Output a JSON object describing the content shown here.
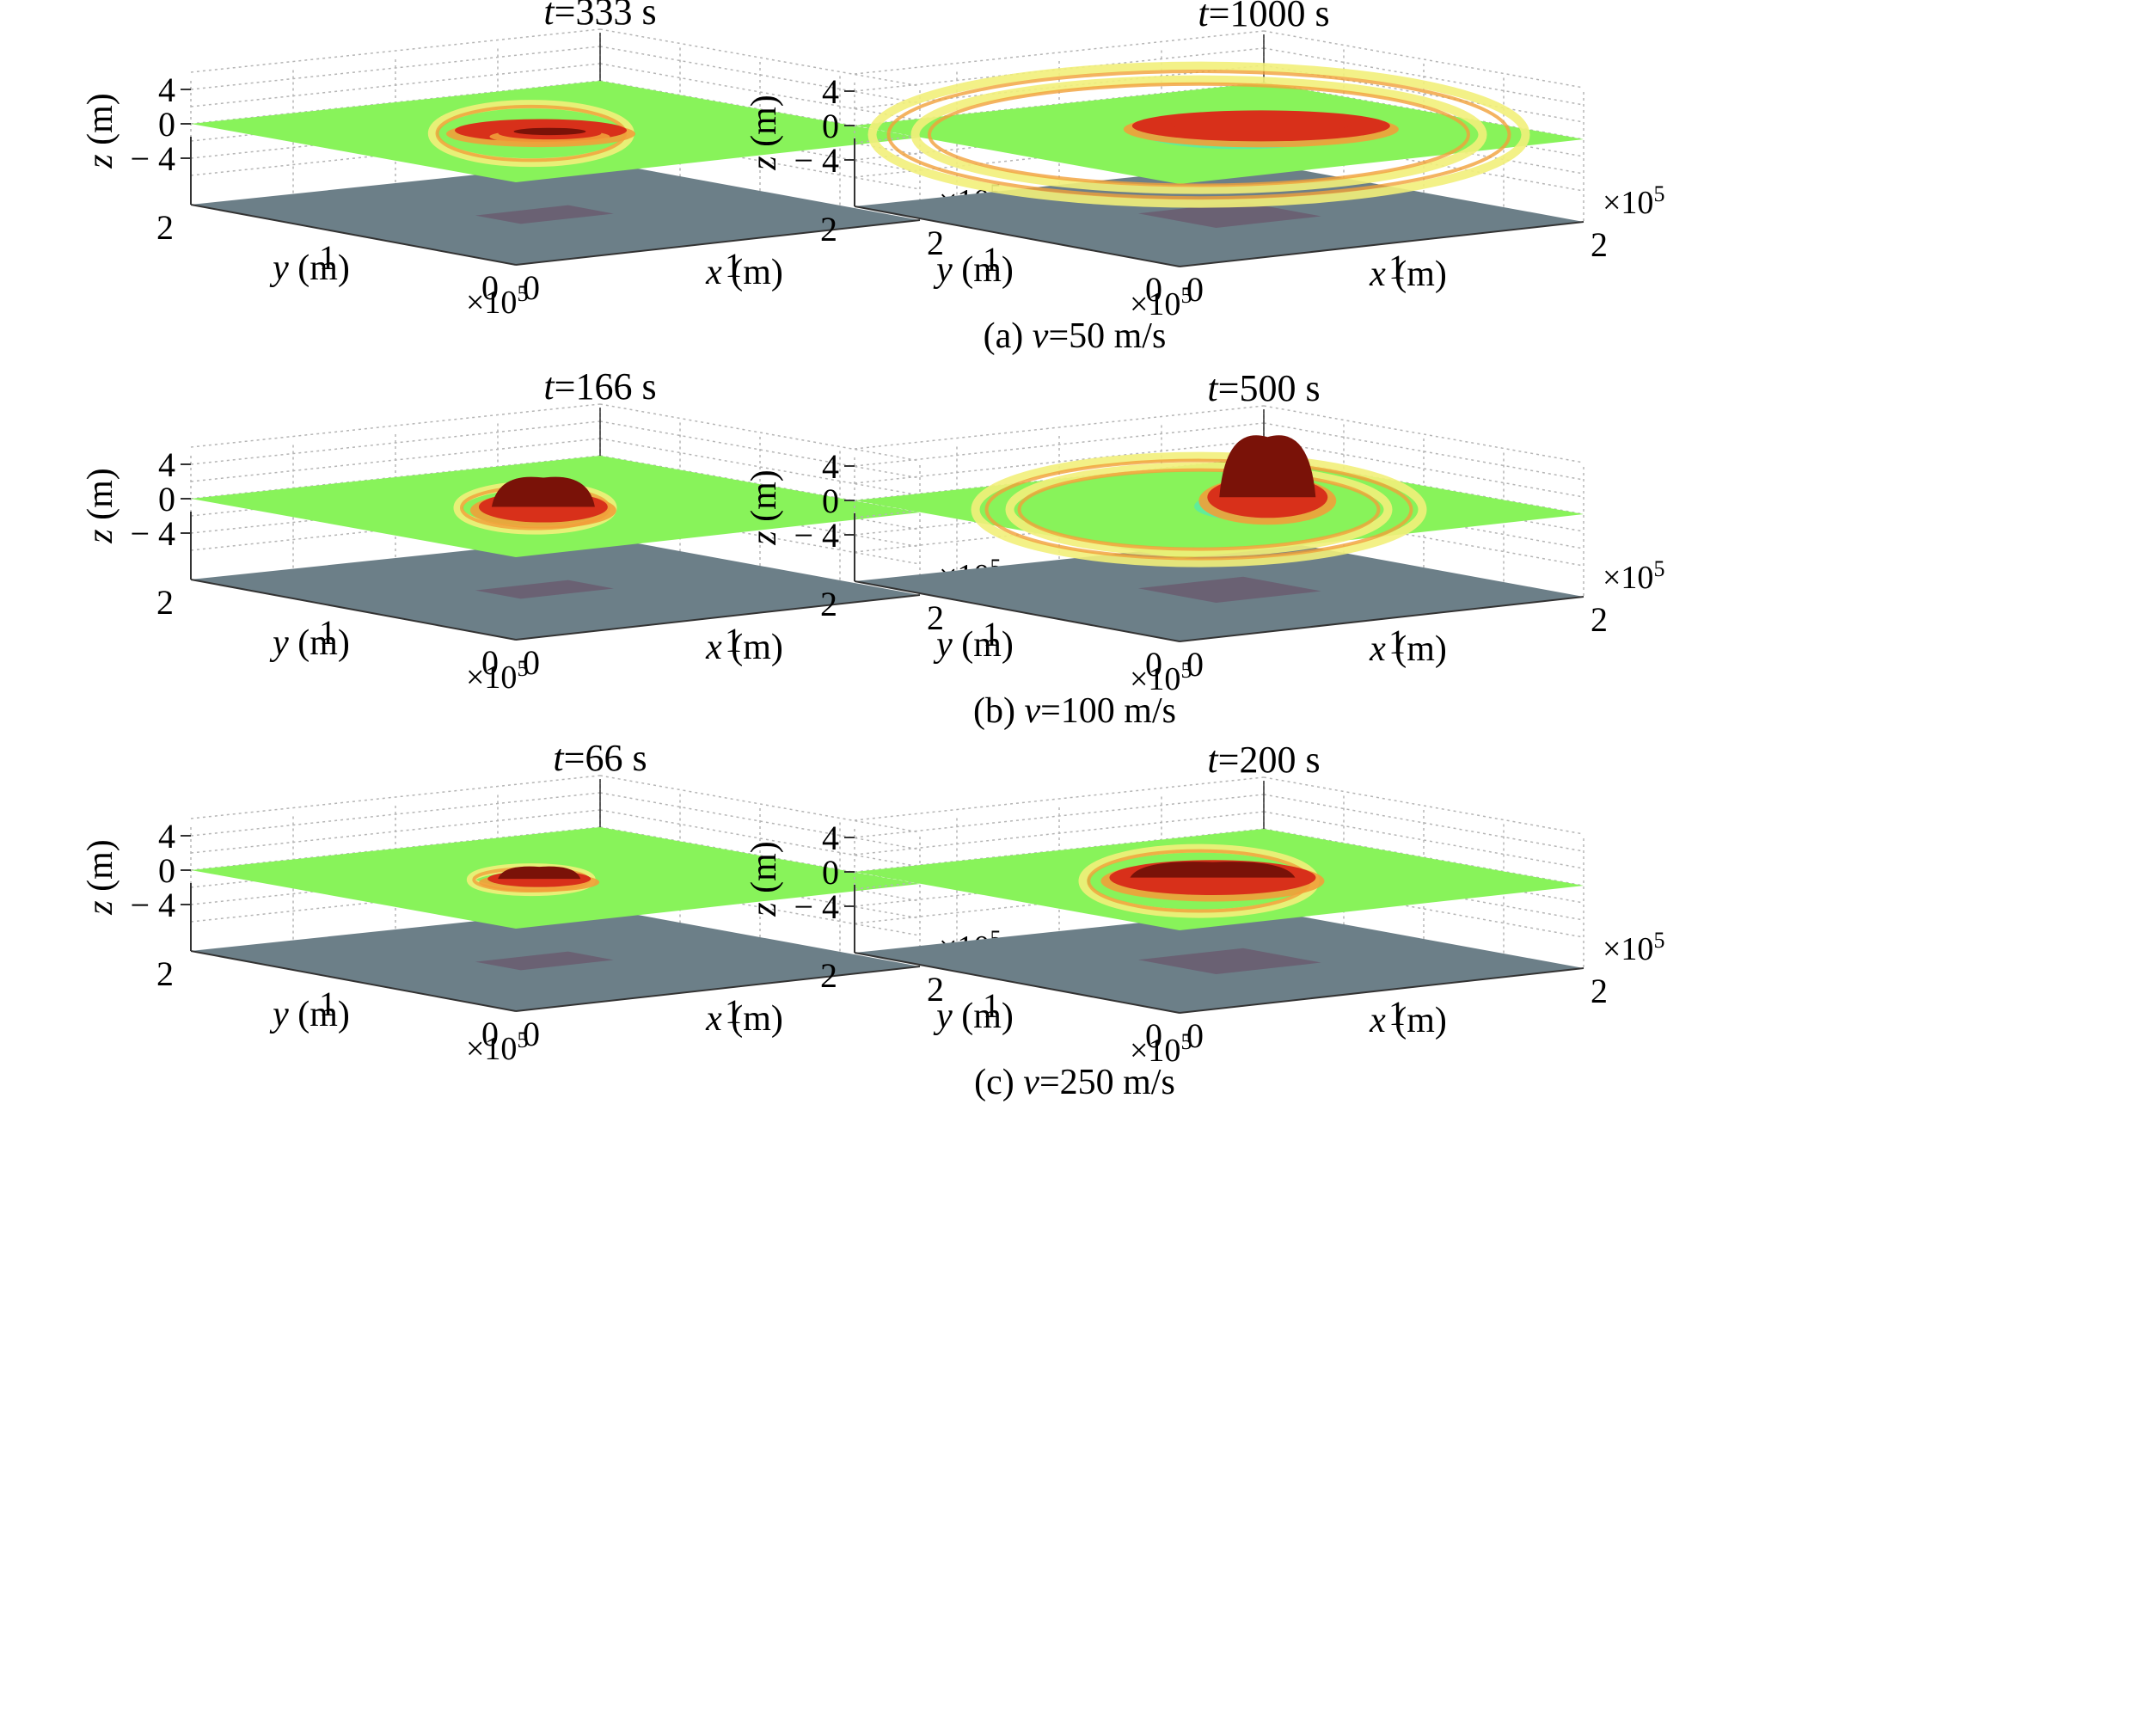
{
  "figure": {
    "rows": [
      {
        "caption_prefix": "(a) ",
        "caption_var": "v",
        "caption_rest": "=50 m/s",
        "panels": [
          {
            "title_var": "t",
            "title_rest": "=333 s"
          },
          {
            "title_var": "t",
            "title_rest": "=1000 s"
          }
        ]
      },
      {
        "caption_prefix": "(b) ",
        "caption_var": "v",
        "caption_rest": "=100 m/s",
        "panels": [
          {
            "title_var": "t",
            "title_rest": "=166 s"
          },
          {
            "title_var": "t",
            "title_rest": "=500 s"
          }
        ]
      },
      {
        "caption_prefix": "(c) ",
        "caption_var": "v",
        "caption_rest": "=250 m/s",
        "panels": [
          {
            "title_var": "t",
            "title_rest": "=66 s"
          },
          {
            "title_var": "t",
            "title_rest": "=200 s"
          }
        ]
      }
    ],
    "axes": {
      "z_ticks": [
        "4",
        "0",
        "− 4"
      ],
      "y_ticks": [
        "2",
        "1",
        "0"
      ],
      "x_ticks": [
        "0",
        "1",
        "2"
      ],
      "x_sci": "×10",
      "y_sci": "×10",
      "sci_exp": "5",
      "x_label_var": "x",
      "y_label_var": "y",
      "z_label_var": "z",
      "unit": " (m)"
    },
    "colors": {
      "sea_surface": "#88f35a",
      "seabed": "#6c7f88",
      "source_patch": "#6a5c70",
      "crest_dark": "#7a1208",
      "crest_red": "#d8301a",
      "crest_orange": "#f1a03a",
      "crest_yellow": "#f2f07a",
      "trough_cyan": "#3fe6cf",
      "grid": "#b5b5b5",
      "axis": "#333333"
    }
  },
  "chart_data": [
    {
      "type": "surface",
      "title": "t=333 s",
      "group": "(a) v=50 m/s",
      "xlabel": "x (m)",
      "ylabel": "y (m)",
      "zlabel": "z (m)",
      "xlim": [
        0,
        200000
      ],
      "ylim": [
        0,
        200000
      ],
      "zlim": [
        -4,
        4
      ],
      "x_ticks": [
        0,
        1,
        2
      ],
      "y_ticks": [
        0,
        1,
        2
      ],
      "z_ticks": [
        -4,
        0,
        4
      ],
      "scale": "×10^5",
      "grid": true
    },
    {
      "type": "surface",
      "title": "t=1000 s",
      "group": "(a) v=50 m/s",
      "xlabel": "x (m)",
      "ylabel": "y (m)",
      "zlabel": "z (m)",
      "xlim": [
        0,
        200000
      ],
      "ylim": [
        0,
        200000
      ],
      "zlim": [
        -4,
        4
      ],
      "x_ticks": [
        0,
        1,
        2
      ],
      "y_ticks": [
        0,
        1,
        2
      ],
      "z_ticks": [
        -4,
        0,
        4
      ],
      "scale": "×10^5",
      "grid": true
    },
    {
      "type": "surface",
      "title": "t=166 s",
      "group": "(b) v=100 m/s",
      "xlabel": "x (m)",
      "ylabel": "y (m)",
      "zlabel": "z (m)",
      "xlim": [
        0,
        200000
      ],
      "ylim": [
        0,
        200000
      ],
      "zlim": [
        -4,
        4
      ],
      "x_ticks": [
        0,
        1,
        2
      ],
      "y_ticks": [
        0,
        1,
        2
      ],
      "z_ticks": [
        -4,
        0,
        4
      ],
      "scale": "×10^5",
      "grid": true
    },
    {
      "type": "surface",
      "title": "t=500 s",
      "group": "(b) v=100 m/s",
      "xlabel": "x (m)",
      "ylabel": "y (m)",
      "zlabel": "z (m)",
      "xlim": [
        0,
        200000
      ],
      "ylim": [
        0,
        200000
      ],
      "zlim": [
        -4,
        4
      ],
      "x_ticks": [
        0,
        1,
        2
      ],
      "y_ticks": [
        0,
        1,
        2
      ],
      "z_ticks": [
        -4,
        0,
        4
      ],
      "scale": "×10^5",
      "grid": true
    },
    {
      "type": "surface",
      "title": "t=66 s",
      "group": "(c) v=250 m/s",
      "xlabel": "x (m)",
      "ylabel": "y (m)",
      "zlabel": "z (m)",
      "xlim": [
        0,
        200000
      ],
      "ylim": [
        0,
        200000
      ],
      "zlim": [
        -4,
        4
      ],
      "x_ticks": [
        0,
        1,
        2
      ],
      "y_ticks": [
        0,
        1,
        2
      ],
      "z_ticks": [
        -4,
        0,
        4
      ],
      "scale": "×10^5",
      "grid": true
    },
    {
      "type": "surface",
      "title": "t=200 s",
      "group": "(c) v=250 m/s",
      "xlabel": "x (m)",
      "ylabel": "y (m)",
      "zlabel": "z (m)",
      "xlim": [
        0,
        200000
      ],
      "ylim": [
        0,
        200000
      ],
      "zlim": [
        -4,
        4
      ],
      "x_ticks": [
        0,
        1,
        2
      ],
      "y_ticks": [
        0,
        1,
        2
      ],
      "z_ticks": [
        -4,
        0,
        4
      ],
      "scale": "×10^5",
      "grid": true
    }
  ]
}
